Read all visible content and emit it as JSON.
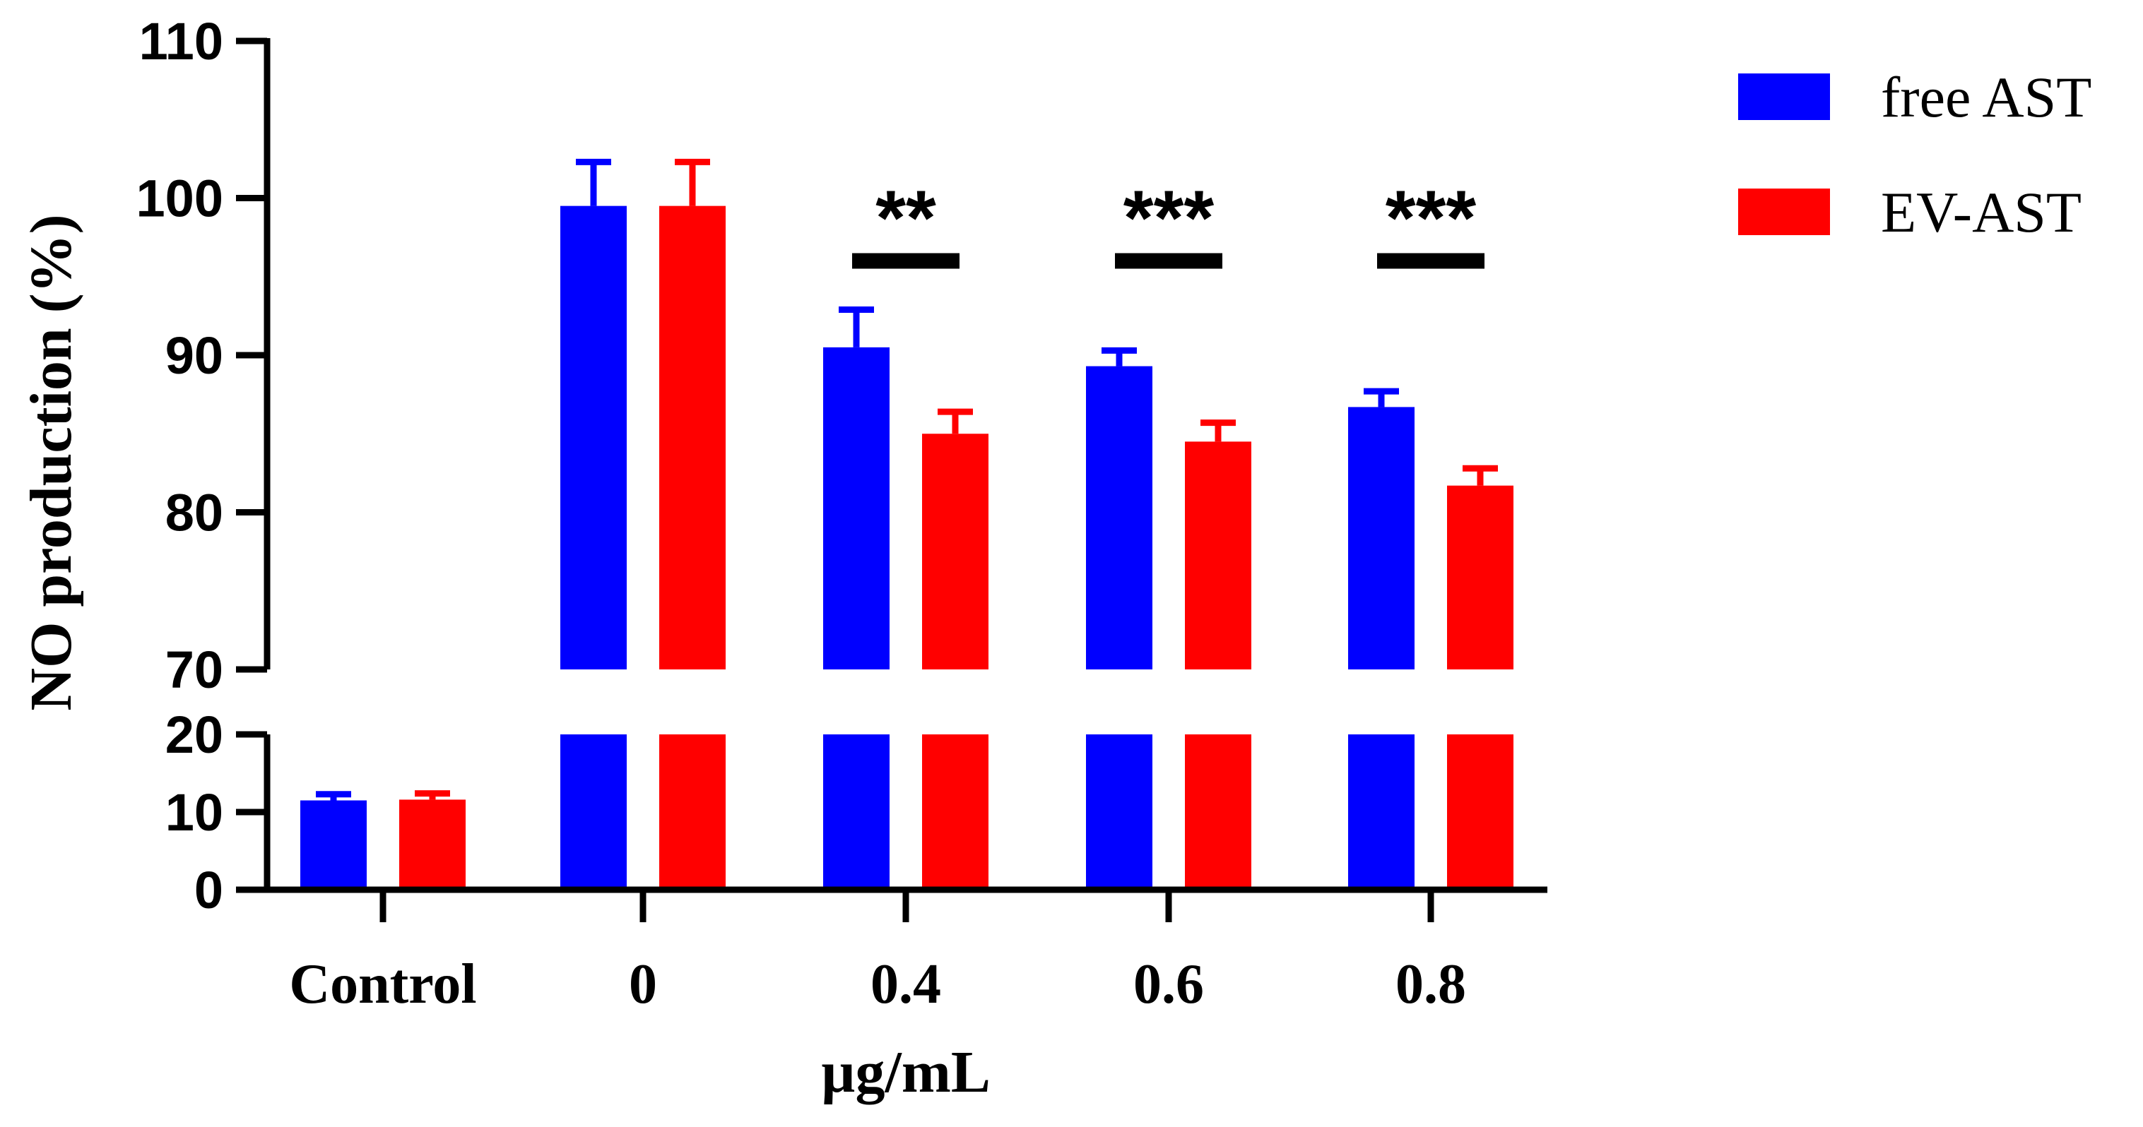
{
  "chart_data": {
    "type": "bar",
    "ylabel": "NO production (%)",
    "xlabel": "µg/mL",
    "categories": [
      "Control",
      "0",
      "0.4",
      "0.6",
      "0.8"
    ],
    "series": [
      {
        "name": "free AST",
        "color": "#0000ff",
        "values": [
          11.5,
          99.5,
          90.5,
          89.3,
          86.7
        ],
        "errors": [
          0.8,
          2.8,
          2.4,
          1.0,
          1.0
        ]
      },
      {
        "name": "EV-AST",
        "color": "#ff0000",
        "values": [
          11.6,
          99.5,
          85.0,
          84.5,
          81.7
        ],
        "errors": [
          0.8,
          2.8,
          1.4,
          1.2,
          1.1
        ]
      }
    ],
    "y_axis_broken": true,
    "lower_segment": {
      "ylim": [
        0,
        20
      ],
      "ticks": [
        "0",
        "10",
        "20"
      ]
    },
    "upper_segment": {
      "ylim": [
        70,
        110
      ],
      "ticks": [
        "70",
        "80",
        "90",
        "100",
        "110"
      ]
    },
    "significance": [
      {
        "category": "0.4",
        "label": "**",
        "bar_level": 96
      },
      {
        "category": "0.6",
        "label": "***",
        "bar_level": 96
      },
      {
        "category": "0.8",
        "label": "***",
        "bar_level": 96
      }
    ],
    "legend_position": "top-right"
  }
}
